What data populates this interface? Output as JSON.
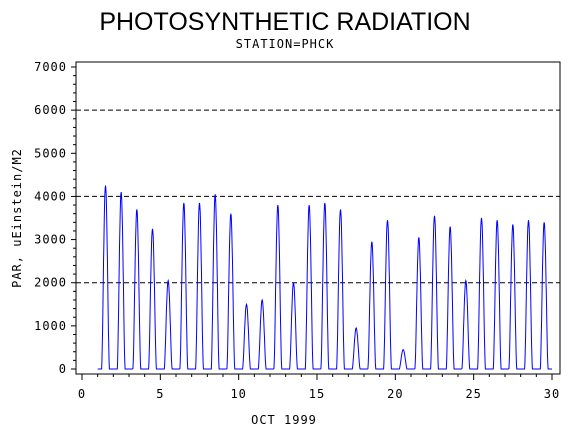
{
  "chart_data": {
    "type": "line",
    "title": "PHOTOSYNTHETIC RADIATION",
    "subtitle": "STATION=PHCK",
    "xlabel": "OCT 1999",
    "ylabel": "PAR, uEinstein/M2",
    "xlim": [
      0,
      30
    ],
    "ylim": [
      0,
      7000
    ],
    "x_ticks": [
      0,
      5,
      10,
      15,
      20,
      25,
      30
    ],
    "y_ticks": [
      0,
      1000,
      2000,
      3000,
      4000,
      5000,
      6000,
      7000
    ],
    "reference_lines": [
      2000,
      4000,
      6000
    ],
    "line_color": "#0000ff",
    "reference_line_style": "dashed",
    "series": [
      {
        "name": "",
        "daily_peaks": [
          {
            "day": 1,
            "peak": 4250
          },
          {
            "day": 2,
            "peak": 4100
          },
          {
            "day": 3,
            "peak": 3700
          },
          {
            "day": 4,
            "peak": 3250
          },
          {
            "day": 5,
            "peak": 2050
          },
          {
            "day": 6,
            "peak": 3850
          },
          {
            "day": 7,
            "peak": 3850
          },
          {
            "day": 8,
            "peak": 4050
          },
          {
            "day": 9,
            "peak": 3600
          },
          {
            "day": 10,
            "peak": 1500
          },
          {
            "day": 11,
            "peak": 1600
          },
          {
            "day": 12,
            "peak": 3800
          },
          {
            "day": 13,
            "peak": 2000
          },
          {
            "day": 14,
            "peak": 3800
          },
          {
            "day": 15,
            "peak": 3850
          },
          {
            "day": 16,
            "peak": 3700
          },
          {
            "day": 17,
            "peak": 950
          },
          {
            "day": 18,
            "peak": 2950
          },
          {
            "day": 19,
            "peak": 3450
          },
          {
            "day": 20,
            "peak": 450
          },
          {
            "day": 21,
            "peak": 3050
          },
          {
            "day": 22,
            "peak": 3550
          },
          {
            "day": 23,
            "peak": 3300
          },
          {
            "day": 24,
            "peak": 2050
          },
          {
            "day": 25,
            "peak": 3500
          },
          {
            "day": 26,
            "peak": 3450
          },
          {
            "day": 27,
            "peak": 3350
          },
          {
            "day": 28,
            "peak": 3450
          },
          {
            "day": 29,
            "peak": 3400
          }
        ]
      }
    ]
  }
}
